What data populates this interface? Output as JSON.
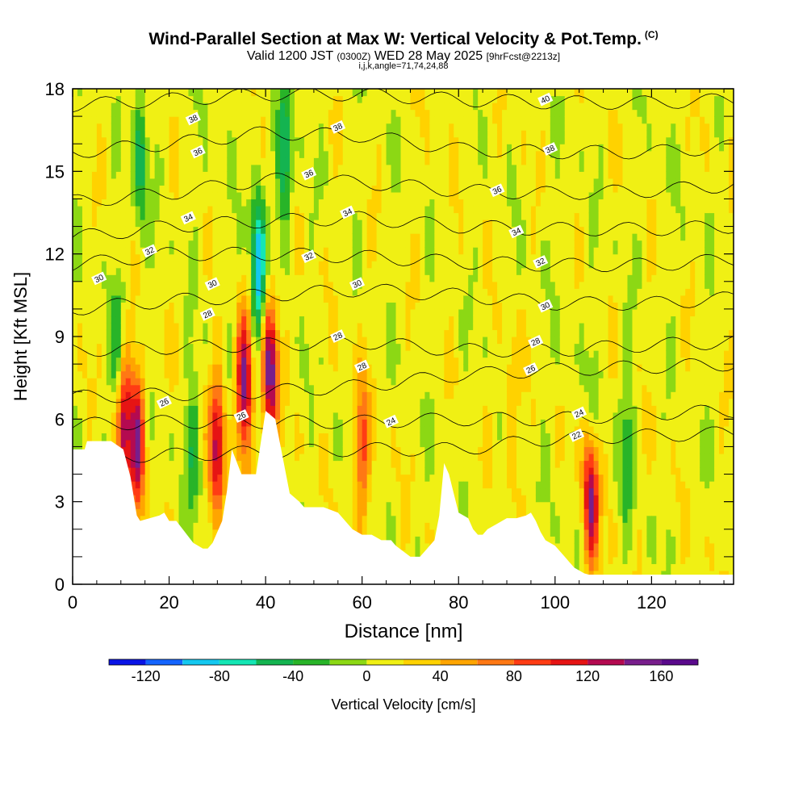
{
  "title": {
    "main": "Wind-Parallel Section at Max W: Vertical Velocity & Pot.Temp.",
    "copyright": "(C)",
    "valid_prefix": "Valid 1200 JST",
    "valid_utc": "(0300Z)",
    "valid_date": "WED 28 May 2025",
    "forecast": "[9hrFcst@2213z]",
    "indices": "i,j,k,angle=71,74,24,88"
  },
  "colorbar": {
    "label": "Vertical Velocity [cm/s]",
    "ticks": [
      "-120",
      "-80",
      "-40",
      "0",
      "40",
      "80",
      "120",
      "160"
    ],
    "tick_values": [
      -120,
      -80,
      -40,
      0,
      40,
      80,
      120,
      160
    ],
    "bins": [
      -140,
      -120,
      -100,
      -80,
      -60,
      -40,
      -20,
      0,
      20,
      40,
      60,
      80,
      100,
      120,
      140,
      160,
      180
    ],
    "colors": [
      "#0a14e6",
      "#1464ff",
      "#14c8f0",
      "#14e6b4",
      "#14b450",
      "#28b428",
      "#8cd814",
      "#f0f014",
      "#ffd200",
      "#ffa500",
      "#ff7814",
      "#ff3c14",
      "#e61414",
      "#b40a50",
      "#781e8c",
      "#5a0a8c"
    ]
  },
  "chart_data": {
    "type": "heatmap",
    "title": "Wind-Parallel Section at Max W: Vertical Velocity & Pot.Temp.",
    "xlabel": "Distance [nm]",
    "ylabel": "Height [Kft MSL]",
    "xlim": [
      0,
      137
    ],
    "ylim": [
      0,
      18
    ],
    "xticks": [
      0,
      20,
      40,
      60,
      80,
      100,
      120
    ],
    "yticks": [
      0,
      3,
      6,
      9,
      12,
      15,
      18
    ],
    "xtick_labels": [
      "0",
      "20",
      "40",
      "60",
      "80",
      "100",
      "120"
    ],
    "ytick_labels": [
      "0",
      "3",
      "6",
      "9",
      "12",
      "15",
      "18"
    ],
    "field": "vertical velocity (cm/s), contoured potential temperature",
    "background_w": 10,
    "updrafts": [
      {
        "x": 10.5,
        "y": 6.0,
        "w_max": 130
      },
      {
        "x": 13.5,
        "y": 5.2,
        "w_max": 130
      },
      {
        "x": 30,
        "y": 5.0,
        "w_max": 120
      },
      {
        "x": 35.5,
        "y": 7.2,
        "w_max": 140
      },
      {
        "x": 41,
        "y": 7.8,
        "w_max": 150
      },
      {
        "x": 60,
        "y": 5.0,
        "w_max": 75
      },
      {
        "x": 107.5,
        "y": 3.3,
        "w_max": 150
      },
      {
        "x": 91,
        "y": 6.5,
        "w_max": 40
      }
    ],
    "downdrafts": [
      {
        "x": 9.5,
        "y": 8.0,
        "w_min": -60
      },
      {
        "x": 14,
        "y": 15.5,
        "w_min": -60
      },
      {
        "x": 25,
        "y": 5.0,
        "w_min": -45
      },
      {
        "x": 38.5,
        "y": 11.5,
        "w_min": -110
      },
      {
        "x": 44,
        "y": 15.5,
        "w_min": -70
      },
      {
        "x": 108,
        "y": 5.5,
        "w_min": -40
      },
      {
        "x": 115,
        "y": 5.0,
        "w_min": -40
      }
    ],
    "theta_contours": [
      {
        "label": "22",
        "x": [
          0,
          20,
          40,
          60,
          80,
          100,
          120,
          137
        ],
        "y": [
          4.6,
          4.7,
          4.8,
          4.9,
          4.9,
          5.3,
          5.4,
          5.5
        ],
        "labels_at": [
          [
            104.5,
            5.4
          ]
        ]
      },
      {
        "label": "24",
        "x": [
          0,
          20,
          40,
          60,
          80,
          100,
          120,
          137
        ],
        "y": [
          5.8,
          5.9,
          5.9,
          5.9,
          6.0,
          6.0,
          6.2,
          6.3
        ],
        "labels_at": [
          [
            66,
            5.9
          ],
          [
            105,
            6.2
          ]
        ]
      },
      {
        "label": "26",
        "x": [
          0,
          20,
          40,
          60,
          80,
          100,
          120,
          137
        ],
        "y": [
          6.8,
          6.9,
          7.0,
          7.2,
          7.6,
          7.8,
          7.9,
          8.0
        ],
        "labels_at": [
          [
            19,
            6.6
          ],
          [
            35,
            6.1
          ],
          [
            95,
            7.8
          ]
        ]
      },
      {
        "label": "28",
        "x": [
          0,
          20,
          40,
          60,
          80,
          100,
          120,
          137
        ],
        "y": [
          8.5,
          8.6,
          8.7,
          8.8,
          8.5,
          8.5,
          8.7,
          8.8
        ],
        "labels_at": [
          [
            28,
            9.8
          ],
          [
            55,
            9.0
          ],
          [
            60,
            7.9
          ],
          [
            96,
            8.8
          ]
        ]
      },
      {
        "label": "30",
        "x": [
          0,
          20,
          40,
          60,
          80,
          100,
          120,
          137
        ],
        "y": [
          10.0,
          10.3,
          10.5,
          10.7,
          10.5,
          10.2,
          10.2,
          10.4
        ],
        "labels_at": [
          [
            5.5,
            11.1
          ],
          [
            29,
            10.9
          ],
          [
            59,
            10.9
          ],
          [
            98,
            10.1
          ]
        ]
      },
      {
        "label": "32",
        "x": [
          0,
          20,
          40,
          60,
          80,
          100,
          120,
          137
        ],
        "y": [
          11.6,
          12.0,
          12.0,
          11.9,
          11.7,
          11.6,
          11.6,
          11.8
        ],
        "labels_at": [
          [
            16,
            12.1
          ],
          [
            49,
            11.9
          ],
          [
            97,
            11.7
          ]
        ]
      },
      {
        "label": "34",
        "x": [
          0,
          20,
          40,
          60,
          80,
          100,
          120,
          137
        ],
        "y": [
          12.6,
          13.0,
          13.2,
          13.3,
          13.0,
          12.9,
          12.9,
          13.0
        ],
        "labels_at": [
          [
            24,
            13.3
          ],
          [
            57,
            13.5
          ],
          [
            92,
            12.8
          ]
        ]
      },
      {
        "label": "36",
        "x": [
          0,
          20,
          40,
          60,
          80,
          100,
          120,
          137
        ],
        "y": [
          13.9,
          14.2,
          14.7,
          14.6,
          14.3,
          14.2,
          14.3,
          14.5
        ],
        "labels_at": [
          [
            26,
            15.7
          ],
          [
            49,
            14.9
          ],
          [
            88,
            14.3
          ]
        ]
      },
      {
        "label": "38",
        "x": [
          0,
          20,
          40,
          60,
          80,
          100,
          120,
          137
        ],
        "y": [
          15.7,
          16.0,
          16.4,
          16.3,
          15.8,
          15.7,
          15.7,
          15.9
        ],
        "labels_at": [
          [
            25,
            16.9
          ],
          [
            55,
            16.6
          ],
          [
            99,
            15.8
          ]
        ]
      },
      {
        "label": "40",
        "x": [
          0,
          20,
          40,
          60,
          80,
          100,
          120,
          137
        ],
        "y": [
          17.4,
          17.6,
          17.8,
          17.8,
          17.6,
          17.5,
          17.5,
          17.6
        ],
        "labels_at": [
          [
            98,
            17.6
          ]
        ]
      }
    ],
    "terrain": {
      "x": [
        0,
        2.5,
        3,
        8,
        10.5,
        12,
        13.3,
        14,
        18,
        19,
        20,
        21.5,
        25,
        27,
        28,
        29,
        31,
        32,
        33,
        35,
        38,
        40,
        42,
        45,
        47,
        48,
        52,
        55,
        56,
        58,
        60,
        62,
        64,
        66,
        67,
        70,
        72,
        73,
        75,
        76,
        77,
        78,
        80,
        82,
        83,
        84,
        85,
        86,
        88,
        90,
        92,
        94,
        95,
        96,
        97,
        98,
        100,
        102,
        103,
        104,
        105,
        106,
        107,
        108,
        110,
        112,
        120,
        130,
        137
      ],
      "y": [
        4.9,
        4.9,
        5.2,
        5.2,
        4.9,
        3.9,
        2.5,
        2.3,
        2.5,
        2.6,
        2.3,
        2.3,
        1.5,
        1.3,
        1.3,
        1.5,
        2.3,
        3.4,
        4.9,
        4.0,
        4.0,
        6.3,
        6.0,
        3.3,
        3.0,
        2.8,
        2.8,
        2.6,
        2.4,
        2.0,
        1.8,
        1.8,
        1.6,
        1.6,
        1.4,
        1.0,
        1.0,
        1.2,
        1.6,
        2.5,
        4.4,
        4.0,
        2.6,
        2.4,
        2.0,
        1.8,
        1.8,
        2.0,
        2.2,
        2.4,
        2.4,
        2.5,
        2.6,
        2.3,
        1.9,
        1.6,
        1.4,
        1.0,
        0.8,
        0.6,
        0.5,
        0.4,
        0.35,
        0.35,
        0.35,
        0.35,
        0.35,
        0.35,
        0.35
      ]
    }
  }
}
